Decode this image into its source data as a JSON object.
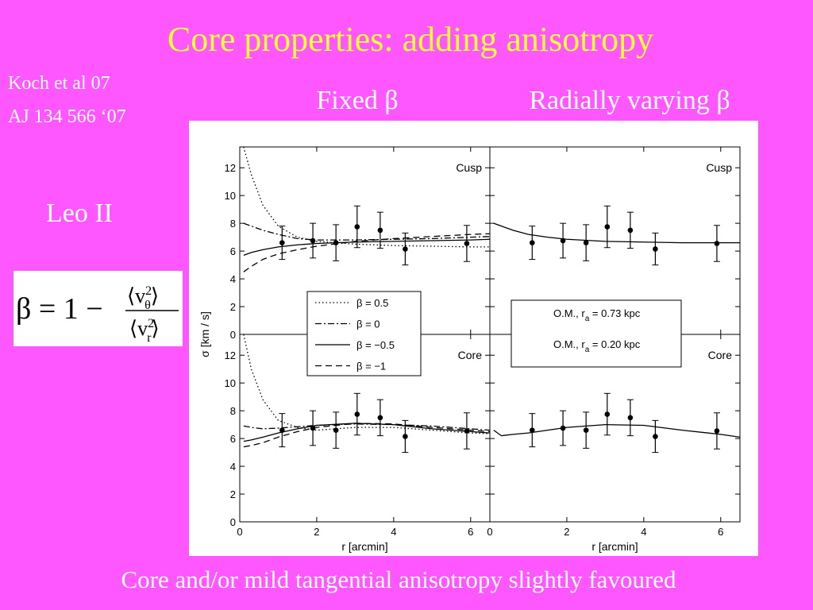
{
  "slide": {
    "title": "Core properties: adding anisotropy",
    "reference": [
      "Koch et al 07",
      "AJ 134 566 ‘07"
    ],
    "column_headings": [
      "Fixed β",
      "Radially varying β"
    ],
    "object": "Leo II",
    "formula": {
      "lhs": "β = 1 −",
      "open": "⟨v",
      "sup": "2",
      "num_sub": "θ",
      "den_sub": "r",
      "close": "⟩"
    },
    "footer": "Core and/or mild tangential anisotropy slightly favoured"
  },
  "chart_data": [
    {
      "type": "errorbar",
      "label": "Cusp",
      "ylabel": "σ [km / s]",
      "xlim": [
        0,
        6.5
      ],
      "ylim": [
        0,
        13.5
      ],
      "xticks": [
        0,
        2,
        4,
        6
      ],
      "yticks": [
        0,
        2,
        4,
        6,
        8,
        10,
        12
      ],
      "xtick_labels": false,
      "ytick_labels": true,
      "points": {
        "x": [
          1.1,
          1.9,
          2.5,
          3.05,
          3.65,
          4.3,
          5.9
        ],
        "y": [
          6.6,
          6.75,
          6.6,
          7.75,
          7.5,
          6.15,
          6.55
        ],
        "err": [
          1.2,
          1.25,
          1.3,
          1.5,
          1.3,
          1.15,
          1.3
        ]
      },
      "curve_x": [
        0.1,
        0.3,
        0.6,
        1,
        1.5,
        2,
        3,
        4,
        5,
        6,
        6.5
      ],
      "series": [
        {
          "name": "β = 0.5",
          "style": "dotted",
          "color": "#000000",
          "values": [
            13.5,
            11.5,
            9.3,
            7.8,
            7.0,
            6.7,
            6.5,
            6.4,
            6.35,
            6.3,
            6.3
          ]
        },
        {
          "name": "β = 0",
          "style": "dashdot",
          "color": "#000000",
          "values": [
            8.0,
            7.8,
            7.5,
            7.2,
            6.9,
            6.8,
            6.8,
            6.85,
            6.9,
            7.0,
            7.05
          ]
        },
        {
          "name": "β = −0.5",
          "style": "solid",
          "color": "#000000",
          "values": [
            5.7,
            5.9,
            6.1,
            6.3,
            6.45,
            6.55,
            6.65,
            6.7,
            6.75,
            6.8,
            6.85
          ]
        },
        {
          "name": "β = −1",
          "style": "dashed",
          "color": "#000000",
          "values": [
            4.5,
            4.9,
            5.4,
            5.8,
            6.1,
            6.35,
            6.7,
            6.9,
            7.05,
            7.2,
            7.25
          ]
        }
      ]
    },
    {
      "type": "errorbar",
      "label": "Cusp",
      "xlim": [
        0,
        6.5
      ],
      "ylim": [
        0,
        13.5
      ],
      "xticks": [
        0,
        2,
        4,
        6
      ],
      "yticks": [
        0,
        2,
        4,
        6,
        8,
        10,
        12
      ],
      "xtick_labels": false,
      "ytick_labels": false,
      "points": {
        "x": [
          1.1,
          1.9,
          2.5,
          3.05,
          3.65,
          4.3,
          5.9
        ],
        "y": [
          6.6,
          6.75,
          6.6,
          7.75,
          7.5,
          6.15,
          6.55
        ],
        "err": [
          1.2,
          1.25,
          1.3,
          1.5,
          1.3,
          1.15,
          1.3
        ]
      },
      "curve_x": [
        0.1,
        0.3,
        0.6,
        1,
        1.5,
        2,
        3,
        4,
        5,
        6,
        6.5
      ],
      "series": [
        {
          "name": "O.M., r",
          "name_sub": "a",
          "name_rest": " = 0.73 kpc",
          "style": "solid",
          "color": "#000000",
          "values": [
            8.0,
            7.8,
            7.5,
            7.2,
            7.0,
            6.85,
            6.7,
            6.65,
            6.6,
            6.6,
            6.6
          ]
        }
      ]
    },
    {
      "type": "errorbar",
      "label": "Core",
      "xlabel": "r [arcmin]",
      "xlim": [
        0,
        6.5
      ],
      "ylim": [
        0,
        13.5
      ],
      "xticks": [
        0,
        2,
        4,
        6
      ],
      "yticks": [
        0,
        2,
        4,
        6,
        8,
        10,
        12
      ],
      "xtick_labels": true,
      "ytick_labels": true,
      "points": {
        "x": [
          1.1,
          1.9,
          2.5,
          3.05,
          3.65,
          4.3,
          5.9
        ],
        "y": [
          6.6,
          6.75,
          6.6,
          7.75,
          7.5,
          6.15,
          6.55
        ],
        "err": [
          1.2,
          1.25,
          1.3,
          1.5,
          1.3,
          1.15,
          1.3
        ]
      },
      "curve_x": [
        0.1,
        0.3,
        0.6,
        1,
        1.5,
        2,
        3,
        4,
        5,
        6,
        6.5
      ],
      "series": [
        {
          "style": "dotted",
          "color": "#000000",
          "values": [
            13.5,
            11,
            8.8,
            7.3,
            6.8,
            6.6,
            6.8,
            6.8,
            6.6,
            6.4,
            6.35
          ]
        },
        {
          "style": "dashdot",
          "color": "#000000",
          "values": [
            6.9,
            6.8,
            6.7,
            6.75,
            6.85,
            6.95,
            7.05,
            7.0,
            6.9,
            6.7,
            6.6
          ]
        },
        {
          "style": "solid",
          "color": "#000000",
          "values": [
            5.8,
            5.9,
            6.1,
            6.4,
            6.7,
            6.95,
            7.1,
            7.0,
            6.7,
            6.5,
            6.4
          ]
        },
        {
          "style": "dashed",
          "color": "#000000",
          "values": [
            5.4,
            5.5,
            5.7,
            6.1,
            6.5,
            6.8,
            7.1,
            7.05,
            6.8,
            6.6,
            6.5
          ]
        }
      ]
    },
    {
      "type": "errorbar",
      "label": "Core",
      "xlabel": "r [arcmin]",
      "xlim": [
        0,
        6.5
      ],
      "ylim": [
        0,
        13.5
      ],
      "xticks": [
        0,
        2,
        4,
        6
      ],
      "yticks": [
        0,
        2,
        4,
        6,
        8,
        10,
        12
      ],
      "xtick_labels": true,
      "ytick_labels": false,
      "points": {
        "x": [
          1.1,
          1.9,
          2.5,
          3.05,
          3.65,
          4.3,
          5.9
        ],
        "y": [
          6.6,
          6.75,
          6.6,
          7.75,
          7.5,
          6.15,
          6.55
        ],
        "err": [
          1.2,
          1.25,
          1.3,
          1.5,
          1.3,
          1.15,
          1.3
        ]
      },
      "curve_x": [
        0.1,
        0.3,
        0.6,
        1,
        1.5,
        2,
        3,
        4,
        5,
        6,
        6.5
      ],
      "series": [
        {
          "name": "O.M., r",
          "name_sub": "a",
          "name_rest": " = 0.20 kpc",
          "style": "solid",
          "color": "#000000",
          "values": [
            6.6,
            6.2,
            6.3,
            6.4,
            6.6,
            6.8,
            7.0,
            6.95,
            6.6,
            6.3,
            6.1
          ]
        }
      ]
    }
  ]
}
